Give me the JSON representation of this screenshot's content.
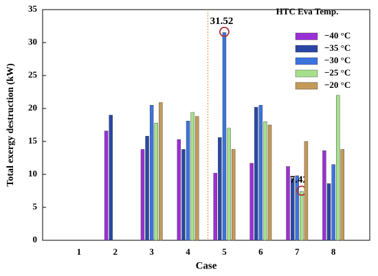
{
  "chart_data": {
    "type": "bar",
    "x_label": "Case",
    "y_label": "Total exergy destruction (kW)",
    "legend_title": "HTC Eva Temp.",
    "legend": "upper right",
    "categories": [
      "1",
      "2",
      "3",
      "4",
      "5",
      "6",
      "7",
      "8"
    ],
    "series": [
      {
        "name": "−40 °C",
        "color": "#9b2fd6",
        "values": [
          null,
          16.6,
          13.8,
          15.3,
          10.2,
          11.7,
          11.2,
          13.6
        ]
      },
      {
        "name": "−35 °C",
        "color": "#2a47a6",
        "values": [
          null,
          19.0,
          15.8,
          13.8,
          15.6,
          20.2,
          9.4,
          8.6
        ]
      },
      {
        "name": "−30 °C",
        "color": "#3b73de",
        "values": [
          null,
          null,
          20.5,
          18.1,
          31.52,
          20.5,
          9.8,
          11.5
        ],
        "value_labels": [
          null,
          null,
          null,
          null,
          "31.52",
          null,
          null,
          null
        ]
      },
      {
        "name": "−25 °C",
        "color": "#a6e08c",
        "values": [
          null,
          null,
          17.8,
          19.4,
          17.0,
          18.0,
          7.42,
          22.0
        ],
        "value_labels": [
          null,
          null,
          null,
          null,
          null,
          null,
          "7.42",
          null
        ]
      },
      {
        "name": "−20 °C",
        "color": "#c49a5a",
        "values": [
          null,
          null,
          20.9,
          18.8,
          13.8,
          17.5,
          15.0,
          13.8
        ]
      }
    ],
    "ylim": [
      0,
      35
    ],
    "yticks": [
      0,
      5,
      10,
      15,
      20,
      25,
      30,
      35
    ]
  }
}
